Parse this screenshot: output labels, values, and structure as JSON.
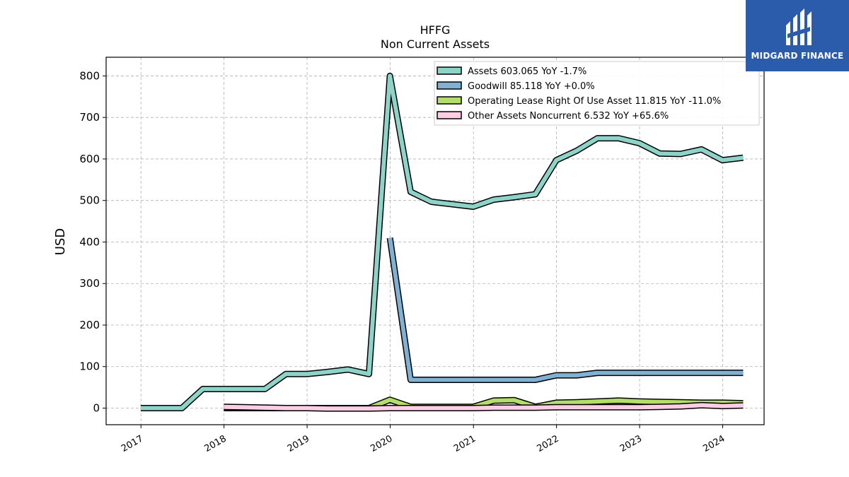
{
  "brand": {
    "name": "MIDGARD FINANCE",
    "color": "#2b5bab"
  },
  "chart_data": {
    "type": "area",
    "title": "HFFG",
    "subtitle": "Non Current  Assets",
    "ylabel": "USD",
    "xlabel": "",
    "ylim": [
      -40,
      845
    ],
    "xlim": [
      "2016-08-01",
      "2024-07-01"
    ],
    "yticks": [
      0,
      100,
      200,
      300,
      400,
      500,
      600,
      700,
      800
    ],
    "xticks": [
      "2017",
      "2018",
      "2019",
      "2020",
      "2021",
      "2022",
      "2023",
      "2024"
    ],
    "grid": true,
    "legend_position": "top-right",
    "series": [
      {
        "name": "Assets",
        "legend": "Assets  603.065 YoY -1.7%",
        "color": "#8dd3c7",
        "x": [
          "2016-12-31",
          "2017-03-31",
          "2017-06-30",
          "2017-09-30",
          "2017-12-31",
          "2018-03-31",
          "2018-06-30",
          "2018-09-30",
          "2018-12-31",
          "2019-03-31",
          "2019-06-30",
          "2019-09-30",
          "2019-12-31",
          "2020-03-31",
          "2020-06-30",
          "2020-09-30",
          "2020-12-31",
          "2021-03-31",
          "2021-06-30",
          "2021-09-30",
          "2021-12-31",
          "2022-03-31",
          "2022-06-30",
          "2022-09-30",
          "2022-12-31",
          "2023-03-31",
          "2023-06-30",
          "2023-09-30",
          "2023-12-31",
          "2024-03-31"
        ],
        "values": [
          0,
          0,
          0,
          46,
          46,
          46,
          46,
          82,
          82,
          87,
          93,
          82,
          800,
          521,
          497,
          491,
          485,
          502,
          508,
          515,
          597,
          620,
          650,
          650,
          638,
          613,
          612,
          623,
          597,
          603
        ]
      },
      {
        "name": "Goodwill",
        "legend": "Goodwill  85.118 YoY +0.0%",
        "color": "#80b1d3",
        "x": [
          "2019-12-31",
          "2020-03-31",
          "2020-06-30",
          "2020-09-30",
          "2020-12-31",
          "2021-03-31",
          "2021-06-30",
          "2021-09-30",
          "2021-12-31",
          "2022-03-31",
          "2022-06-30",
          "2022-09-30",
          "2022-12-31",
          "2023-03-31",
          "2023-06-30",
          "2023-09-30",
          "2023-12-31",
          "2024-03-31"
        ],
        "values": [
          410,
          68,
          68,
          68,
          68,
          68,
          68,
          68,
          79,
          79,
          85,
          85,
          85,
          85,
          85,
          85,
          85,
          85
        ]
      },
      {
        "name": "Operating Lease Right Of Use Asset",
        "legend": "Operating Lease Right Of Use Asset  11.815 YoY -11.0%",
        "color": "#b3de69",
        "x": [
          "2017-12-31",
          "2018-03-31",
          "2018-06-30",
          "2018-09-30",
          "2018-12-31",
          "2019-03-31",
          "2019-06-30",
          "2019-09-30",
          "2019-12-31",
          "2020-03-31",
          "2020-06-30",
          "2020-09-30",
          "2020-12-31",
          "2021-03-31",
          "2021-06-30",
          "2021-09-30",
          "2021-12-31",
          "2022-03-31",
          "2022-06-30",
          "2022-09-30",
          "2022-12-31",
          "2023-03-31",
          "2023-06-30",
          "2023-09-30",
          "2023-12-31",
          "2024-03-31"
        ],
        "values": [
          0,
          0,
          0,
          0,
          0,
          0,
          0,
          0,
          20,
          3,
          3,
          3,
          3,
          18,
          19,
          3,
          13,
          14,
          16,
          18,
          16,
          15,
          14,
          13,
          13,
          11.8
        ]
      },
      {
        "name": "Other Assets Noncurrent",
        "legend": "Other Assets Noncurrent  6.532 YoY +65.6%",
        "color": "#fccde5",
        "x": [
          "2017-12-31",
          "2018-03-31",
          "2018-06-30",
          "2018-09-30",
          "2018-12-31",
          "2019-03-31",
          "2019-06-30",
          "2019-09-30",
          "2019-12-31",
          "2020-03-31",
          "2020-06-30",
          "2020-09-30",
          "2020-12-31",
          "2021-03-31",
          "2021-06-30",
          "2021-09-30",
          "2021-12-31",
          "2022-03-31",
          "2022-06-30",
          "2022-09-30",
          "2022-12-31",
          "2023-03-31",
          "2023-06-30",
          "2023-09-30",
          "2023-12-31",
          "2024-03-31"
        ],
        "values": [
          3,
          2,
          1,
          0,
          0,
          -1,
          -1,
          -1,
          0,
          0,
          0,
          0,
          0,
          1,
          1,
          1,
          2,
          2,
          2,
          2,
          2,
          3,
          4,
          7,
          5,
          6.5
        ]
      }
    ]
  }
}
